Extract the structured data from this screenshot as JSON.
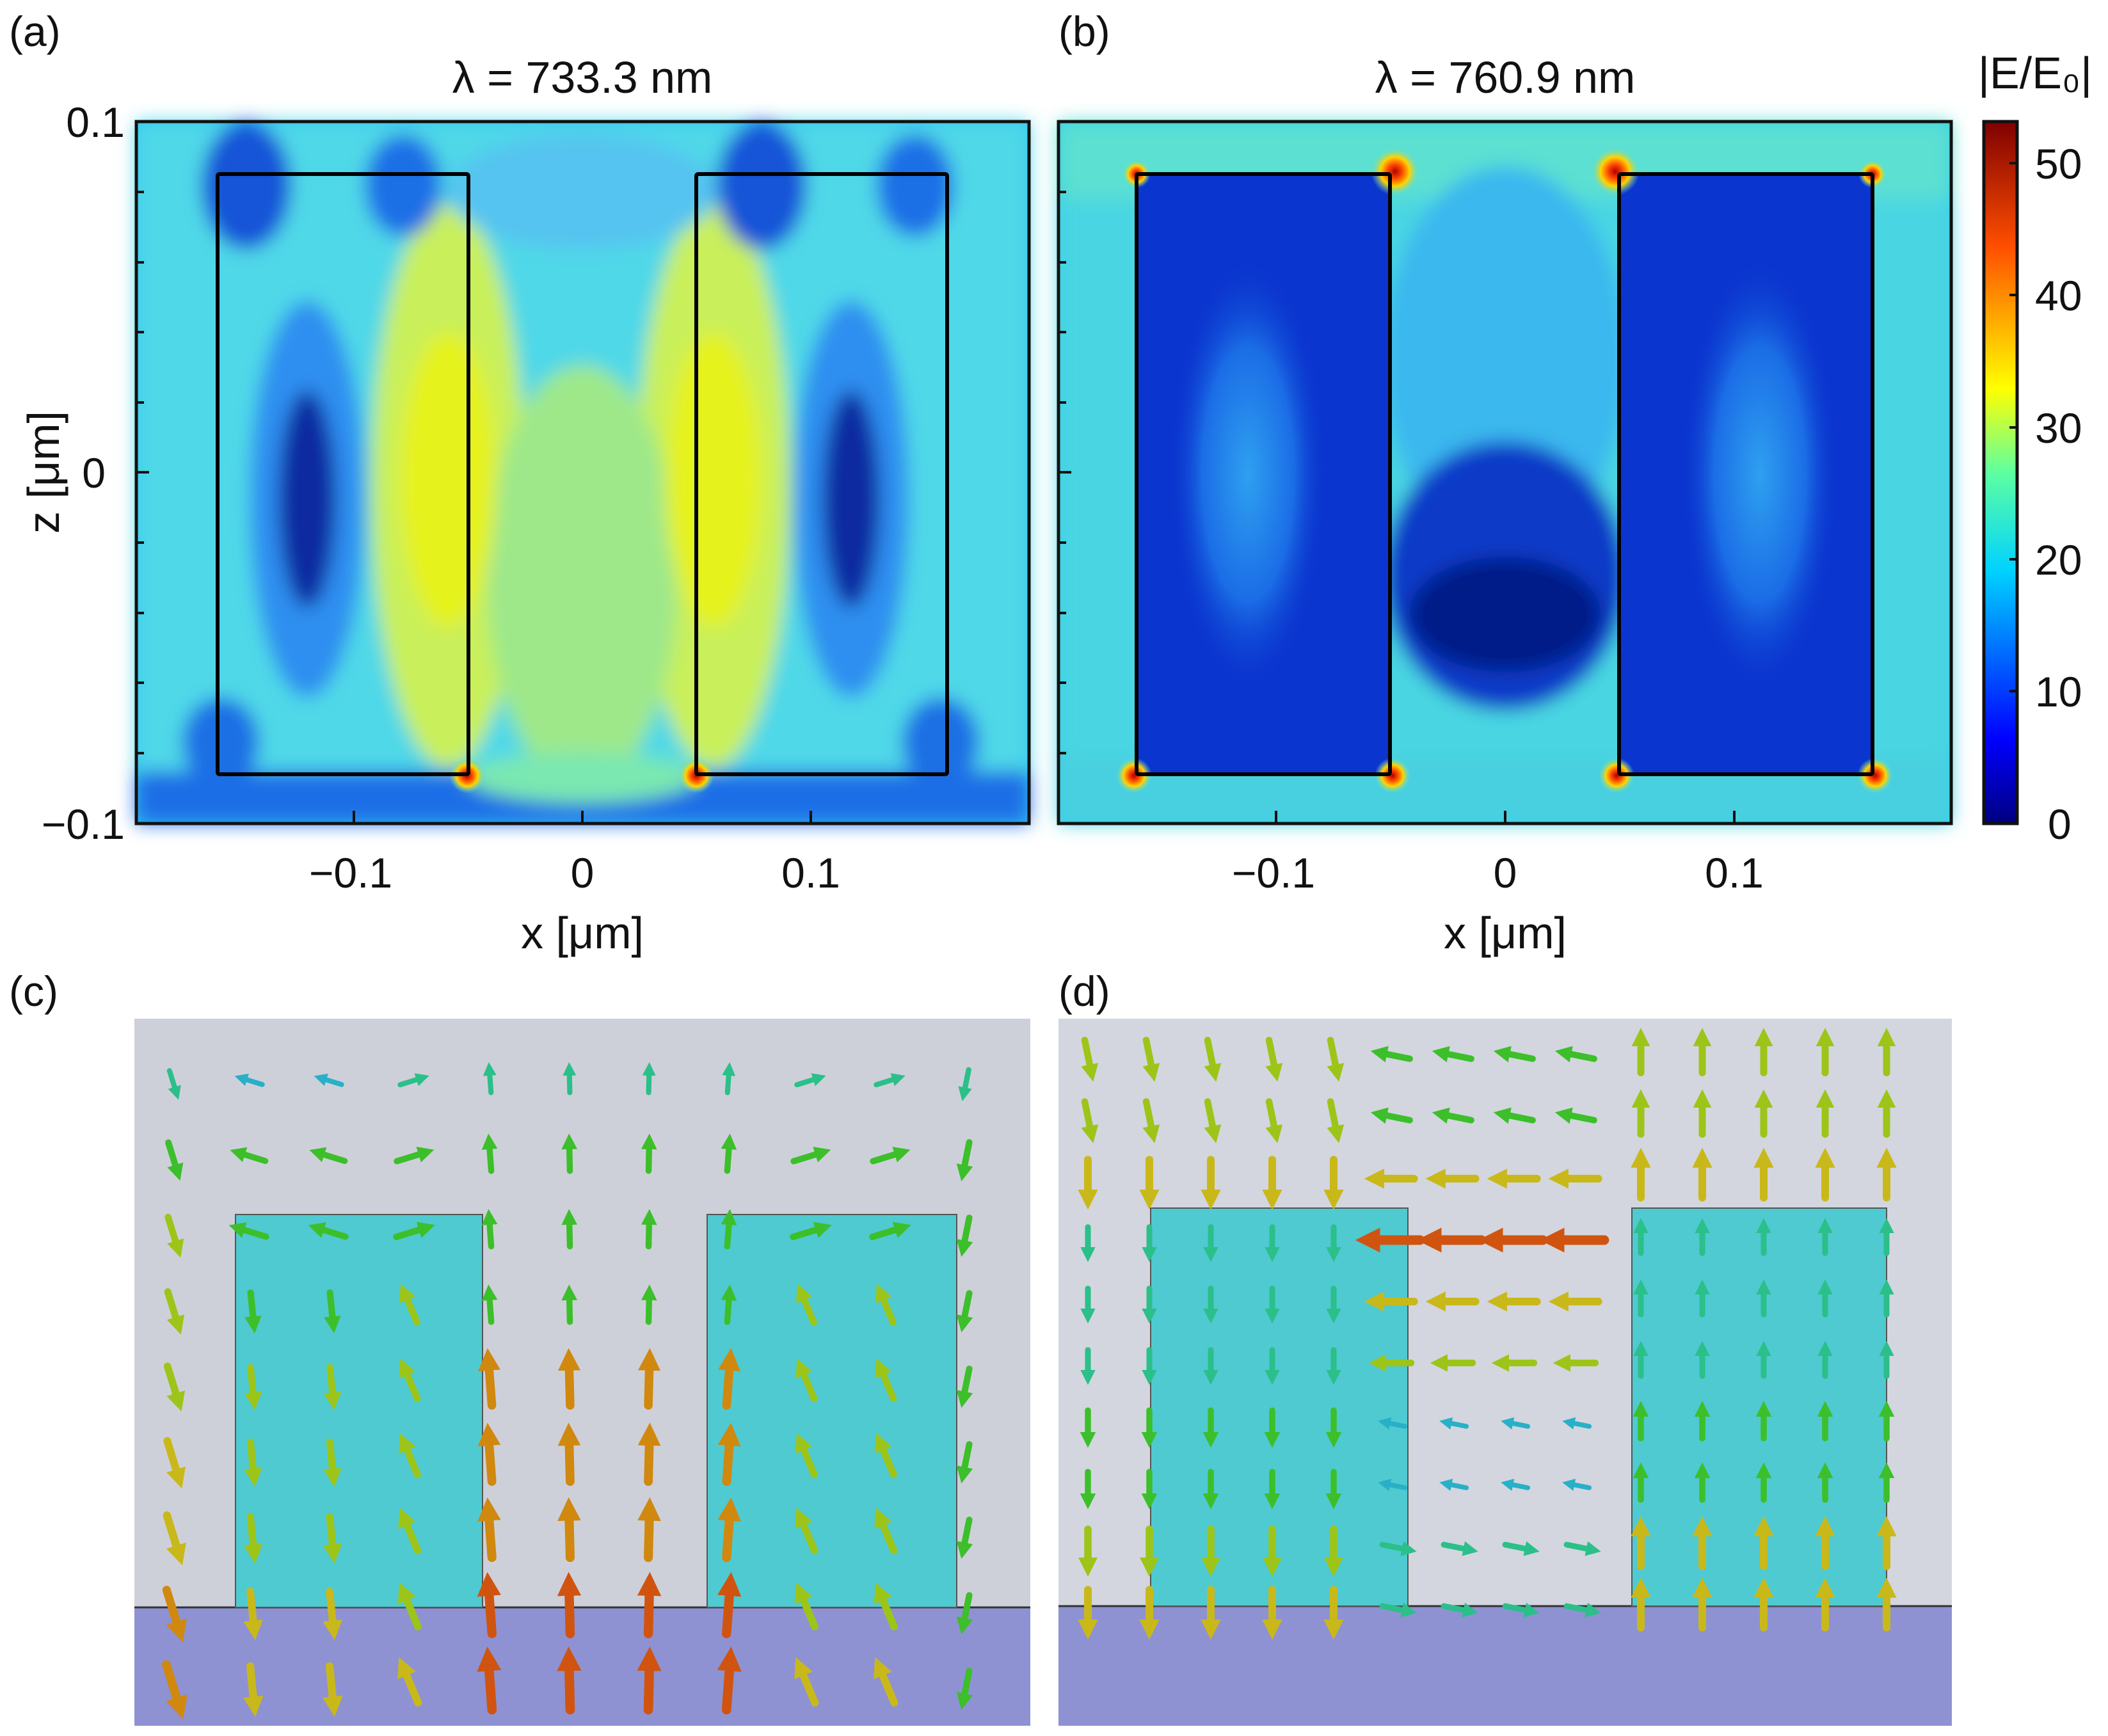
{
  "figure": {
    "panel_a": {
      "label": "(a)",
      "title": "λ = 733.3 nm",
      "xlabel": "x [μm]",
      "ylabel": "z [μm]",
      "xticks": [
        "−0.1",
        "0",
        "0.1"
      ],
      "yticks": [
        "0.1",
        "0",
        "−0.1"
      ]
    },
    "panel_b": {
      "label": "(b)",
      "title": "λ = 760.9 nm",
      "xlabel": "x [μm]",
      "xticks": [
        "−0.1",
        "0",
        "0.1"
      ]
    },
    "panel_c": {
      "label": "(c)"
    },
    "panel_d": {
      "label": "(d)"
    },
    "colorbar": {
      "title": "|E/E₀|",
      "ticks": [
        "0",
        "10",
        "20",
        "30",
        "40",
        "50"
      ]
    }
  },
  "chart_data": [
    {
      "type": "heatmap",
      "title": "λ = 733.3 nm",
      "xlabel": "x [μm]",
      "ylabel": "z [μm]",
      "xlim": [
        -0.185,
        0.185
      ],
      "ylim": [
        -0.1,
        0.1
      ],
      "quantity": "|E/E0|",
      "nanostructures": [
        {
          "x": [
            -0.152,
            -0.048
          ],
          "z": [
            -0.085,
            0.085
          ]
        },
        {
          "x": [
            0.048,
            0.152
          ],
          "z": [
            -0.085,
            0.085
          ]
        }
      ],
      "features": [
        {
          "x": -0.058,
          "z": 0.0,
          "value": 33
        },
        {
          "x": 0.058,
          "z": 0.0,
          "value": 33
        },
        {
          "x": -0.113,
          "z": 0.0,
          "value": 2
        },
        {
          "x": 0.113,
          "z": 0.0,
          "value": 2
        },
        {
          "x": -0.048,
          "z": -0.085,
          "value": 50
        },
        {
          "x": 0.048,
          "z": -0.085,
          "value": 50
        }
      ]
    },
    {
      "type": "heatmap",
      "title": "λ = 760.9 nm",
      "xlabel": "x [μm]",
      "xlim": [
        -0.185,
        0.185
      ],
      "ylim": [
        -0.1,
        0.1
      ],
      "quantity": "|E/E0|",
      "nanostructures": [
        {
          "x": [
            -0.152,
            -0.048
          ],
          "z": [
            -0.085,
            0.085
          ]
        },
        {
          "x": [
            0.048,
            0.152
          ],
          "z": [
            -0.085,
            0.085
          ]
        }
      ],
      "features": [
        {
          "x": -0.048,
          "z": 0.085,
          "value": 52
        },
        {
          "x": 0.048,
          "z": 0.085,
          "value": 52
        },
        {
          "x": -0.152,
          "z": -0.085,
          "value": 42
        },
        {
          "x": -0.048,
          "z": -0.085,
          "value": 42
        },
        {
          "x": 0.048,
          "z": -0.085,
          "value": 42
        },
        {
          "x": 0.152,
          "z": -0.085,
          "value": 42
        },
        {
          "x": 0.0,
          "z": -0.04,
          "value": 2
        }
      ]
    }
  ]
}
